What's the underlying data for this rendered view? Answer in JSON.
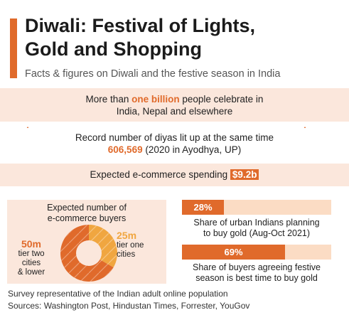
{
  "header": {
    "title_line1": "Diwali: Festival of Lights,",
    "title_line2": "Gold and Shopping",
    "subtitle": "Facts & figures on Diwali and the festive season in India"
  },
  "facts": {
    "celebrants_pre": "More than ",
    "celebrants_highlight": "one billion",
    "celebrants_post": " people celebrate in",
    "celebrants_line2": "India, Nepal and elsewhere",
    "diyas_line1": "Record number of diyas lit up at the same time",
    "diyas_value": "606,569",
    "diyas_note": "(2020 in Ayodhya, UP)",
    "ecommerce_label": "Expected e-commerce spending",
    "ecommerce_value": "$9.2b"
  },
  "buyers_panel": {
    "title_line1": "Expected number of",
    "title_line2": "e-commerce buyers",
    "left_value": "50m",
    "left_line1": "tier two",
    "left_line2": "cities",
    "left_line3": "& lower",
    "right_value": "25m",
    "right_line1": "tier one",
    "right_line2": "cities"
  },
  "stats": {
    "gold_value": "28%",
    "gold_caption_line1": "Share of urban Indians planning",
    "gold_caption_line2": "to buy gold (Aug-Oct 2021)",
    "season_value": "69%",
    "season_caption_line1": "Share of buyers agreeing festive",
    "season_caption_line2": "season is best time to buy gold"
  },
  "footer": {
    "note": "Survey representative of the Indian adult online population",
    "sources": "Sources: Washington Post, Hindustan Times, Forrester, YouGov"
  },
  "colors": {
    "accent": "#e06a2b",
    "light_accent": "#f0a640",
    "band": "#fbe7dc",
    "track": "#fbdcc4"
  },
  "chart_data": [
    {
      "type": "pie",
      "title": "Expected number of e-commerce buyers",
      "categories": [
        "tier two cities & lower",
        "tier one cities"
      ],
      "values": [
        50,
        25
      ],
      "unit": "m",
      "colors": [
        "#e06a2b",
        "#f0a640"
      ]
    },
    {
      "type": "bar",
      "categories": [
        "Share of urban Indians planning to buy gold (Aug-Oct 2021)",
        "Share of buyers agreeing festive season is best time to buy gold"
      ],
      "values": [
        28,
        69
      ],
      "unit": "%",
      "ylim": [
        0,
        100
      ]
    }
  ]
}
